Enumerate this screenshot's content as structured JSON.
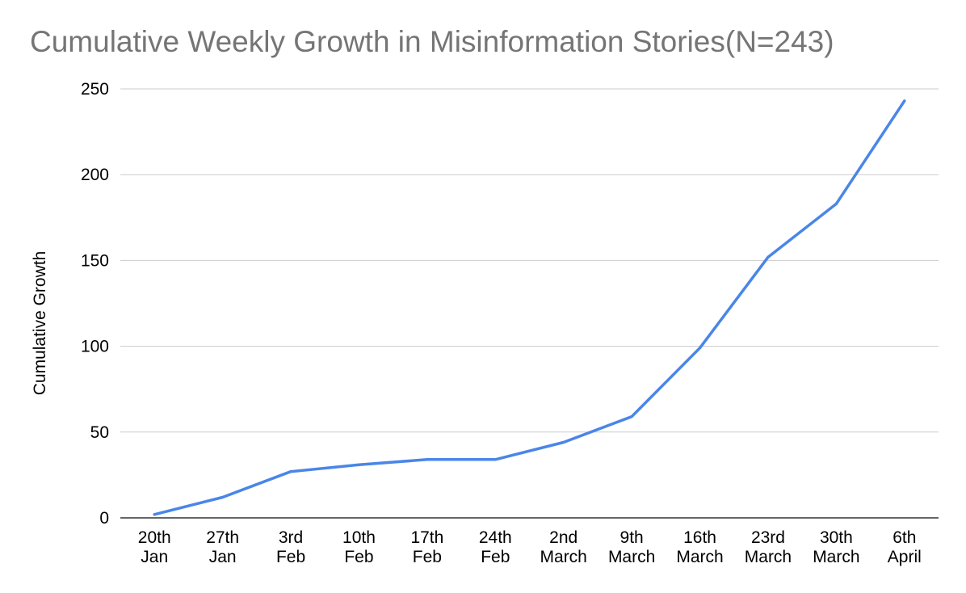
{
  "chart_data": {
    "type": "line",
    "title": "Cumulative Weekly Growth in Misinformation Stories(N=243)",
    "xlabel": "",
    "ylabel": "Cumulative Growth",
    "categories": [
      [
        "20th",
        "Jan"
      ],
      [
        "27th",
        "Jan"
      ],
      [
        "3rd",
        "Feb"
      ],
      [
        "10th",
        "Feb"
      ],
      [
        "17th",
        "Feb"
      ],
      [
        "24th",
        "Feb"
      ],
      [
        "2nd",
        "March"
      ],
      [
        "9th",
        "March"
      ],
      [
        "16th",
        "March"
      ],
      [
        "23rd",
        "March"
      ],
      [
        "30th",
        "March"
      ],
      [
        "6th",
        "April"
      ]
    ],
    "series": [
      {
        "values": [
          2,
          12,
          27,
          31,
          34,
          34,
          44,
          59,
          99,
          152,
          183,
          243
        ]
      }
    ],
    "ylim": [
      0,
      250
    ],
    "yticks": [
      0,
      50,
      100,
      150,
      200,
      250
    ],
    "grid": true,
    "legend": "none",
    "colors": {
      "line": "#4a86e8",
      "grid": "#cccccc",
      "axis": "#333333"
    }
  }
}
